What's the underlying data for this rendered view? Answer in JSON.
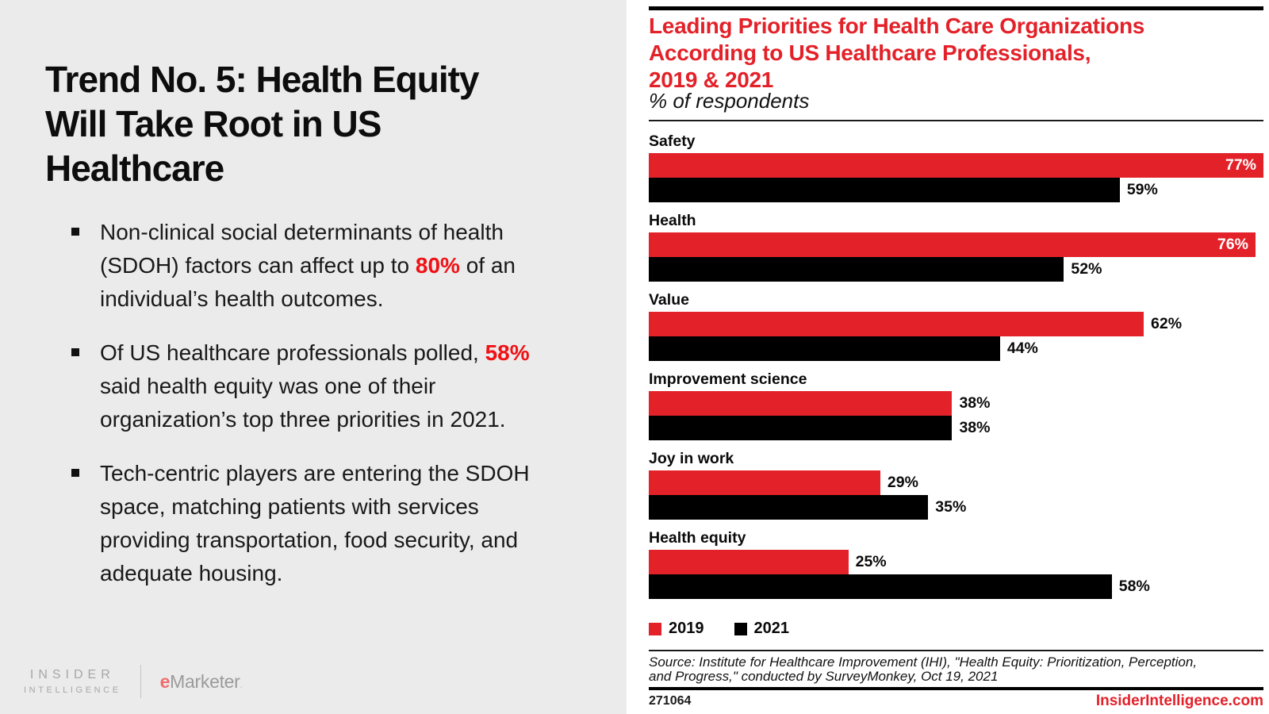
{
  "colors": {
    "chart_red": "#e32129",
    "highlight_red": "#f01115",
    "bar_black": "#000000",
    "left_bg": "#ebebeb"
  },
  "left_panel": {
    "title_lines": [
      "Trend No. 5: Health Equity",
      "Will Take Root in US",
      "Healthcare"
    ],
    "bullets": [
      {
        "pre": "Non-clinical social determinants of health (SDOH) factors can affect up to ",
        "highlight": "80%",
        "post": " of an individual’s health outcomes."
      },
      {
        "pre": "Of US healthcare professionals polled, ",
        "highlight": "58%",
        "post": " said health equity was one of their organization’s top three priorities in 2021."
      },
      {
        "pre": "Tech-centric players are entering the SDOH space, matching patients with services providing transportation, food security, and adequate housing.",
        "highlight": "",
        "post": ""
      }
    ],
    "logos": {
      "insider_line1": "INSIDER",
      "insider_line2": "INTELLIGENCE",
      "emarketer_e": "e",
      "emarketer_rest": "Marketer",
      "emarketer_dot": "."
    }
  },
  "chart_data": {
    "type": "bar",
    "orientation": "horizontal",
    "title": "Leading Priorities for Health Care Organizations According to US Healthcare Professionals, 2019 & 2021",
    "title_lines": [
      "Leading Priorities for Health Care Organizations",
      "According to US Healthcare Professionals,",
      "2019 & 2021"
    ],
    "subtitle": "% of respondents",
    "categories": [
      "Safety",
      "Health",
      "Value",
      "Improvement science",
      "Joy in work",
      "Health equity"
    ],
    "series": [
      {
        "name": "2019",
        "color": "#e32129",
        "values": [
          77,
          76,
          62,
          38,
          29,
          25
        ]
      },
      {
        "name": "2021",
        "color": "#000000",
        "values": [
          59,
          52,
          44,
          38,
          35,
          58
        ]
      }
    ],
    "value_suffix": "%",
    "xlim": [
      0,
      77
    ],
    "label_inside_threshold": 70,
    "grid": false,
    "legend_position": "bottom-left"
  },
  "footer": {
    "source_lines": [
      "Source: Institute for Healthcare Improvement (IHI), \"Health Equity: Prioritization, Perception,",
      "and Progress,\" conducted by SurveyMonkey, Oct 19, 2021"
    ],
    "chart_id": "271064",
    "site": "InsiderIntelligence.com"
  }
}
